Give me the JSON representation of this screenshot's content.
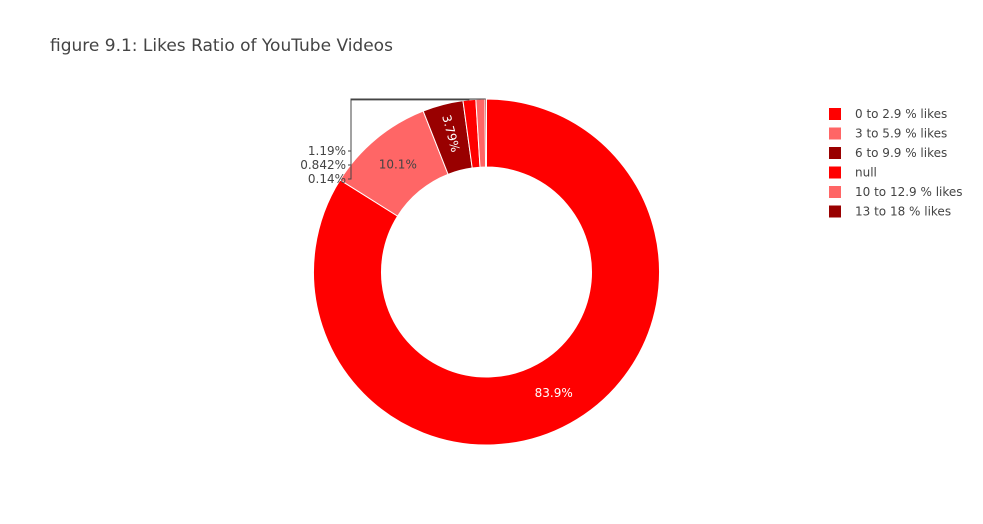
{
  "chart_data": {
    "type": "pie",
    "hole": true,
    "title": "figure 9.1: Likes Ratio of YouTube Videos",
    "legend_position": "top-right",
    "slices": [
      {
        "label": "0 to 2.9 % likes",
        "value": 83.9,
        "text": "83.9%",
        "color": "#ff0000",
        "text_color": "#ffffff"
      },
      {
        "label": "3 to 5.9 % likes",
        "value": 10.1,
        "text": "10.1%",
        "color": "#ff6666",
        "text_color": "#444444"
      },
      {
        "label": "6 to 9.9 % likes",
        "value": 3.79,
        "text": "3.79%",
        "color": "#990000",
        "text_color": "#ffffff"
      },
      {
        "label": "null",
        "value": 1.19,
        "text": "1.19%",
        "color": "#ff0000",
        "text_color": "#444444"
      },
      {
        "label": "10 to 12.9 % likes",
        "value": 0.842,
        "text": "0.842%",
        "color": "#ff6666",
        "text_color": "#444444"
      },
      {
        "label": "13 to 18 % likes",
        "value": 0.14,
        "text": "0.14%",
        "color": "#990000",
        "text_color": "#444444"
      }
    ]
  }
}
